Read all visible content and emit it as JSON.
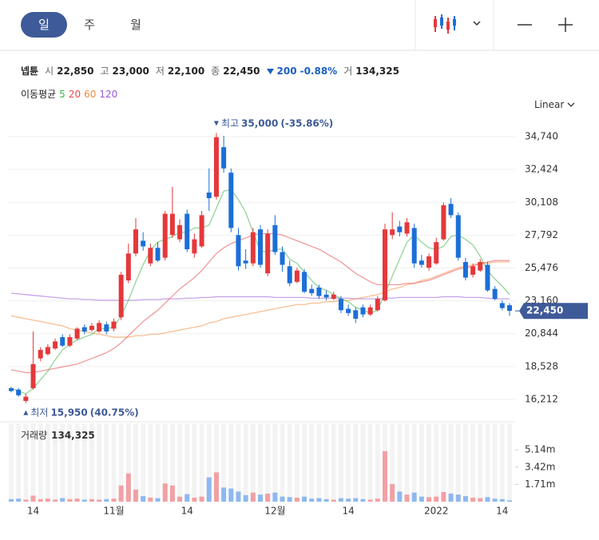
{
  "tabs": [
    "일",
    "주",
    "월"
  ],
  "quote": {
    "name": "넵튠",
    "open_label": "시",
    "open": "22,850",
    "high_label": "고",
    "high": "23,000",
    "low_label": "저",
    "low": "22,100",
    "close_label": "종",
    "close": "22,450",
    "change": "200",
    "change_pct": "-0.88%",
    "volume_label": "거",
    "volume": "134,325"
  },
  "chart_data": [
    {
      "type": "candlestick",
      "ma_title": "이동평균",
      "scale_label": "Linear",
      "up_color": "#e5383b",
      "down_color": "#1b6fd8",
      "grid": true,
      "open": [
        17000,
        16900,
        16100,
        17000,
        19100,
        19400,
        19800,
        20600,
        20000,
        20500,
        21300,
        21100,
        21000,
        21500,
        21200,
        22000,
        24600,
        26500,
        27400,
        25800,
        26900,
        26200,
        27800,
        27500,
        29300,
        26500,
        27000,
        30800,
        30500,
        34000,
        32200,
        27800,
        26000,
        25800,
        28200,
        25100,
        28500,
        26600,
        25600,
        24500,
        25200,
        24000,
        24100,
        23600,
        23300,
        23300,
        22600,
        22500,
        22700,
        22200,
        22500,
        23200,
        27800,
        28400,
        27900,
        28300,
        26000,
        25500,
        25800,
        27500,
        30000,
        29200,
        25900,
        25000,
        25300,
        25700,
        24000,
        23000,
        22850
      ],
      "high": [
        17100,
        17000,
        16600,
        21000,
        19900,
        20100,
        20500,
        20800,
        20800,
        21300,
        21500,
        21600,
        21800,
        21700,
        21900,
        25200,
        27200,
        29000,
        28000,
        27200,
        27300,
        29500,
        31200,
        28900,
        29600,
        27900,
        29500,
        32500,
        35000,
        34800,
        32500,
        28300,
        26800,
        28300,
        28500,
        28200,
        29200,
        27000,
        26000,
        25500,
        25400,
        24300,
        24300,
        23900,
        23800,
        23500,
        22900,
        22700,
        22900,
        22900,
        23500,
        28600,
        29400,
        28800,
        29000,
        28600,
        26400,
        26500,
        27600,
        30100,
        30400,
        29400,
        26200,
        25800,
        26100,
        25900,
        24200,
        23200,
        23000
      ],
      "low": [
        16700,
        16400,
        15950,
        16900,
        18900,
        19300,
        19700,
        19900,
        19900,
        20400,
        20800,
        21000,
        20900,
        20800,
        21000,
        21800,
        24400,
        26300,
        26700,
        25600,
        25900,
        26000,
        27600,
        27300,
        26600,
        26200,
        26900,
        29500,
        30300,
        32200,
        28000,
        25300,
        25400,
        25600,
        25500,
        24900,
        26400,
        25200,
        24200,
        24400,
        23700,
        23500,
        23300,
        23200,
        23200,
        22300,
        22100,
        21600,
        22000,
        22100,
        22400,
        23100,
        27500,
        27700,
        27700,
        25500,
        25500,
        25300,
        25700,
        27400,
        29000,
        26000,
        24600,
        24800,
        25200,
        23800,
        23200,
        22500,
        22100
      ],
      "close": [
        16800,
        16500,
        16400,
        18700,
        19700,
        19900,
        20300,
        20000,
        20600,
        21200,
        21000,
        21400,
        21600,
        21000,
        21700,
        25000,
        26500,
        28200,
        27000,
        26900,
        26000,
        29300,
        29300,
        28500,
        26800,
        27500,
        29200,
        30400,
        34700,
        32500,
        28300,
        25600,
        25800,
        28000,
        25700,
        27900,
        26600,
        25700,
        24400,
        25300,
        23800,
        23700,
        23500,
        23400,
        23600,
        22500,
        22300,
        21900,
        22200,
        22700,
        23300,
        28200,
        28200,
        28000,
        28700,
        25800,
        25700,
        26300,
        27300,
        29900,
        29200,
        26200,
        24800,
        25600,
        25900,
        23900,
        23300,
        22650,
        22450
      ],
      "series": [
        {
          "name": "5",
          "color": "#3cb043",
          "values": [
            17000,
            16800,
            16600,
            17000,
            17600,
            18200,
            19000,
            19700,
            20100,
            20400,
            20600,
            20800,
            21200,
            21200,
            21300,
            22100,
            23200,
            24500,
            25700,
            26700,
            27300,
            27500,
            27700,
            28000,
            28000,
            28300,
            28300,
            28500,
            29700,
            30900,
            31000,
            30300,
            29400,
            28000,
            26700,
            26600,
            26800,
            26800,
            26100,
            25800,
            25200,
            24600,
            24100,
            23900,
            23600,
            23300,
            23100,
            22700,
            22500,
            22300,
            22500,
            23700,
            24900,
            26100,
            27300,
            27800,
            27300,
            26900,
            26800,
            27000,
            27700,
            27800,
            27500,
            27100,
            26300,
            25300,
            24700,
            24200,
            23600
          ]
        },
        {
          "name": "20",
          "color": "#e5484d",
          "values": [
            18300,
            18200,
            18100,
            18100,
            18200,
            18300,
            18400,
            18500,
            18600,
            18700,
            18900,
            19100,
            19300,
            19500,
            19800,
            20200,
            20700,
            21200,
            21700,
            22100,
            22500,
            23000,
            23500,
            24000,
            24400,
            24800,
            25300,
            25900,
            26500,
            26900,
            27200,
            27400,
            27600,
            27800,
            27900,
            27900,
            27900,
            27800,
            27600,
            27400,
            27200,
            27000,
            26800,
            26500,
            26200,
            25900,
            25500,
            25100,
            24800,
            24500,
            24300,
            24300,
            24300,
            24300,
            24400,
            24400,
            24500,
            24600,
            24800,
            25000,
            25200,
            25400,
            25500,
            25600,
            25800,
            25900,
            26000,
            26000,
            26000
          ]
        },
        {
          "name": "60",
          "color": "#f08a3c",
          "values": [
            22100,
            22000,
            21900,
            21800,
            21700,
            21600,
            21500,
            21400,
            21200,
            21100,
            21000,
            20900,
            20800,
            20700,
            20600,
            20600,
            20600,
            20700,
            20700,
            20800,
            20800,
            20900,
            21000,
            21100,
            21200,
            21300,
            21400,
            21600,
            21700,
            21900,
            22000,
            22100,
            22200,
            22300,
            22400,
            22500,
            22600,
            22700,
            22800,
            22900,
            22900,
            23000,
            23000,
            23100,
            23100,
            23200,
            23200,
            23300,
            23400,
            23500,
            23600,
            23800,
            24000,
            24100,
            24300,
            24400,
            24600,
            24700,
            24900,
            25100,
            25300,
            25500,
            25600,
            25700,
            25800,
            25800,
            25900,
            25900,
            25900
          ]
        },
        {
          "name": "120",
          "color": "#9b59d6",
          "values": [
            23700,
            23650,
            23600,
            23550,
            23500,
            23450,
            23400,
            23350,
            23300,
            23300,
            23250,
            23250,
            23200,
            23200,
            23200,
            23200,
            23200,
            23200,
            23250,
            23250,
            23250,
            23300,
            23300,
            23300,
            23350,
            23350,
            23400,
            23400,
            23450,
            23450,
            23450,
            23450,
            23450,
            23450,
            23450,
            23450,
            23400,
            23400,
            23400,
            23400,
            23400,
            23350,
            23350,
            23350,
            23350,
            23350,
            23350,
            23300,
            23300,
            23300,
            23300,
            23350,
            23350,
            23400,
            23400,
            23400,
            23400,
            23400,
            23400,
            23450,
            23450,
            23450,
            23400,
            23400,
            23400,
            23350,
            23300,
            23300,
            23300
          ]
        }
      ],
      "ylim": [
        14800,
        36490
      ],
      "yticks": [
        {
          "value": 16212,
          "label": "16,212"
        },
        {
          "value": 18528,
          "label": "18,528"
        },
        {
          "value": 20844,
          "label": "20,844"
        },
        {
          "value": 23160,
          "label": "23,160"
        },
        {
          "value": 25476,
          "label": "25,476"
        },
        {
          "value": 27792,
          "label": "27,792"
        },
        {
          "value": 30108,
          "label": "30,108"
        },
        {
          "value": 32424,
          "label": "32,424"
        },
        {
          "value": 34740,
          "label": "34,740"
        }
      ],
      "high_marker": {
        "label": "최고",
        "value": 35000,
        "value_label": "35,000",
        "change": "(-35.86%)"
      },
      "low_marker": {
        "label": "최저",
        "value": 15950,
        "value_label": "15,950",
        "change": "(40.75%)"
      },
      "last_price": {
        "value": 22450,
        "label": "22,450"
      }
    },
    {
      "type": "volume",
      "title": "거래량",
      "last_label": "134,325",
      "up_color": "#f2a0a4",
      "down_color": "#8db8f0",
      "categories": [
        null,
        null,
        null,
        "14",
        null,
        null,
        null,
        null,
        null,
        null,
        null,
        null,
        null,
        null,
        "11월",
        null,
        null,
        null,
        null,
        null,
        null,
        null,
        null,
        null,
        "14",
        null,
        null,
        null,
        null,
        null,
        null,
        null,
        null,
        null,
        null,
        null,
        "12월",
        null,
        null,
        null,
        null,
        null,
        null,
        null,
        null,
        null,
        "14",
        null,
        null,
        null,
        null,
        null,
        null,
        null,
        null,
        null,
        null,
        null,
        "2022",
        null,
        null,
        null,
        null,
        null,
        null,
        null,
        null,
        "14",
        null
      ],
      "values": [
        250000,
        300000,
        200000,
        600000,
        250000,
        300000,
        200000,
        350000,
        250000,
        300000,
        200000,
        250000,
        200000,
        250000,
        300000,
        1600000,
        2800000,
        1200000,
        550000,
        400000,
        350000,
        1800000,
        1600000,
        500000,
        750000,
        400000,
        500000,
        2400000,
        2900000,
        1400000,
        1300000,
        1000000,
        650000,
        900000,
        700000,
        800000,
        900000,
        500000,
        450000,
        400000,
        500000,
        300000,
        350000,
        250000,
        200000,
        350000,
        300000,
        350000,
        250000,
        200000,
        300000,
        5000000,
        1750000,
        1000000,
        700000,
        900000,
        500000,
        450000,
        500000,
        950000,
        800000,
        700000,
        550000,
        400000,
        350000,
        450000,
        300000,
        250000,
        134325
      ],
      "ylim": [
        0,
        7360000
      ],
      "yticks": [
        {
          "value": 1710000,
          "label": "1.71m"
        },
        {
          "value": 3420000,
          "label": "3.42m"
        },
        {
          "value": 5140000,
          "label": "5.14m"
        }
      ]
    }
  ]
}
